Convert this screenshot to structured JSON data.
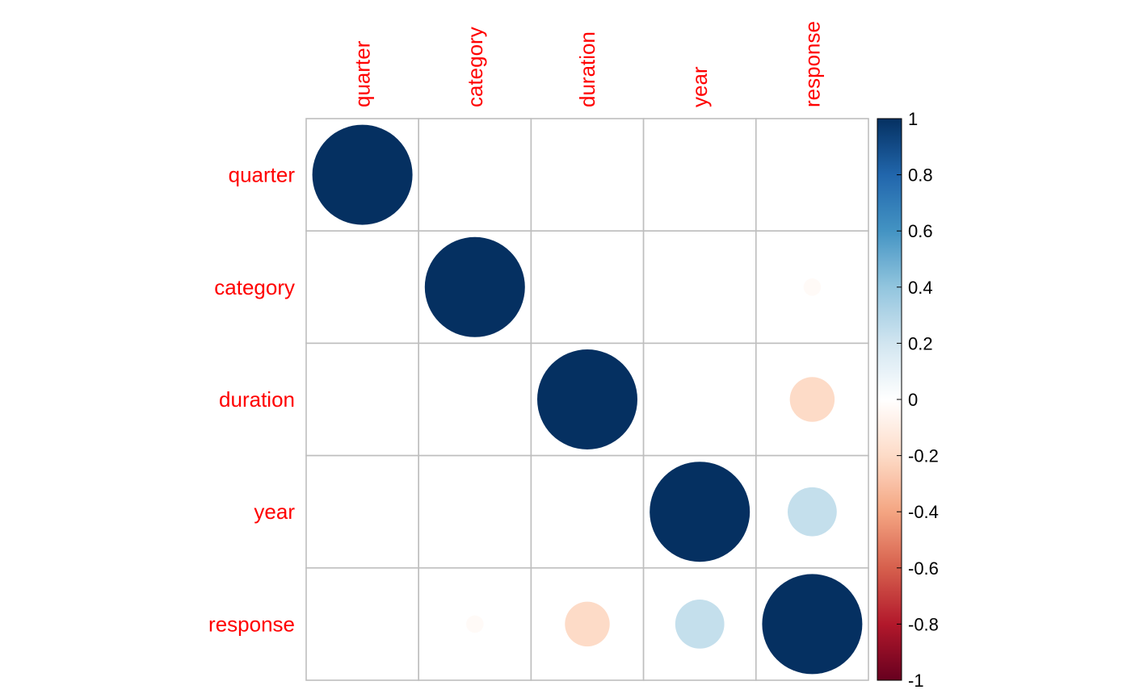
{
  "chart_data": {
    "type": "heatmap",
    "subtype": "correlation-matrix-circles",
    "title": "",
    "variables": [
      "quarter",
      "category",
      "duration",
      "year",
      "response"
    ],
    "matrix": [
      [
        1,
        0,
        0,
        0,
        0
      ],
      [
        0,
        1,
        0,
        0,
        -0.03
      ],
      [
        0,
        0,
        1,
        0,
        -0.2
      ],
      [
        0,
        0,
        0,
        1,
        0.24
      ],
      [
        0,
        -0.03,
        -0.2,
        0.24,
        1
      ]
    ],
    "colorbar": {
      "range": [
        -1,
        1
      ],
      "ticks": [
        "1",
        "0.8",
        "0.6",
        "0.4",
        "0.2",
        "0",
        "-0.2",
        "-0.4",
        "-0.6",
        "-0.8",
        "-1"
      ],
      "tick_values": [
        1,
        0.8,
        0.6,
        0.4,
        0.2,
        0,
        -0.2,
        -0.4,
        -0.6,
        -0.8,
        -1
      ],
      "colors": [
        "#67001F",
        "#B2182B",
        "#D6604D",
        "#F4A582",
        "#FDDBC7",
        "#FFFFFF",
        "#D1E5F0",
        "#92C5DE",
        "#4393C3",
        "#2166AC",
        "#053061"
      ]
    },
    "label_color": "#FF0000",
    "grid": true
  }
}
